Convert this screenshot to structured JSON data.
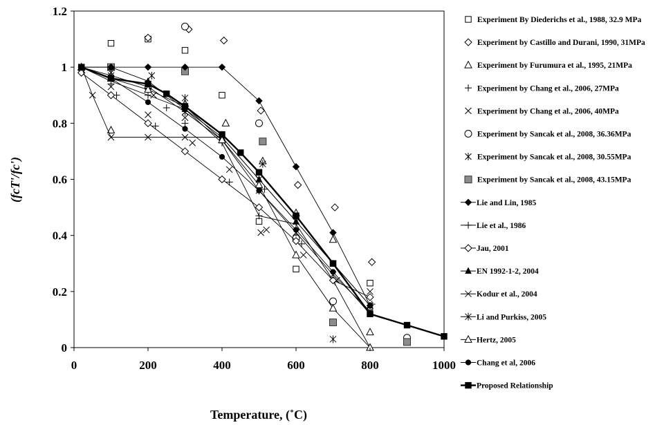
{
  "chart_data": {
    "type": "scatter",
    "title": "",
    "xlabel": "Temperature, (˚C)",
    "ylabel": "(fcT'/fc')",
    "xlim": [
      0,
      1000
    ],
    "ylim": [
      0,
      1.2
    ],
    "xticks": [
      0,
      200,
      400,
      600,
      800,
      1000
    ],
    "yticks": [
      0,
      0.2,
      0.4,
      0.6,
      0.8,
      1,
      1.2
    ],
    "ytick_labels": [
      "0",
      "0.2",
      "0.4",
      "0.6",
      "0.8",
      "1",
      "1.2"
    ],
    "grid": false,
    "legend_position": "right",
    "series": [
      {
        "name": "Experiment By Diederichs et al., 1988, 32.9 MPa",
        "marker": "square-open",
        "line": false,
        "x": [
          20,
          100,
          200,
          300,
          400,
          500,
          600,
          700,
          800,
          900
        ],
        "y": [
          1.0,
          1.085,
          1.1,
          1.06,
          0.9,
          0.45,
          0.28,
          0.3,
          0.23,
          0.02
        ]
      },
      {
        "name": "Experiment by Castillo and Durani, 1990, 31MPa",
        "marker": "diamond-open",
        "line": false,
        "x": [
          20,
          200,
          310,
          405,
          505,
          605,
          705,
          805
        ],
        "y": [
          0.99,
          1.105,
          1.135,
          1.095,
          0.845,
          0.58,
          0.5,
          0.305
        ]
      },
      {
        "name": "Experiment by Furumura et al., 1995, 21MPa",
        "marker": "triangle-open",
        "line": false,
        "x": [
          100,
          200,
          300,
          410,
          510,
          600,
          700,
          800
        ],
        "y": [
          0.775,
          0.935,
          0.87,
          0.8,
          0.665,
          0.48,
          0.385,
          0.055
        ]
      },
      {
        "name": "Experiment by Chang et al., 2006, 27MPa",
        "marker": "plus",
        "line": false,
        "x": [
          100,
          115,
          220,
          250,
          300,
          420,
          515,
          615,
          705,
          805
        ],
        "y": [
          0.94,
          0.9,
          0.79,
          0.855,
          0.8,
          0.59,
          0.565,
          0.37,
          0.235,
          0.155
        ]
      },
      {
        "name": "Experiment by Chang et al., 2006, 40MPa",
        "marker": "x",
        "line": false,
        "x": [
          100,
          200,
          215,
          300,
          320,
          420,
          505,
          520,
          620,
          710,
          800
        ],
        "y": [
          0.93,
          0.83,
          0.9,
          0.82,
          0.73,
          0.635,
          0.41,
          0.42,
          0.33,
          0.24,
          0.2
        ]
      },
      {
        "name": "Experiment by Sancak et al., 2008, 36.36MPa",
        "marker": "circle-open",
        "line": false,
        "x": [
          300,
          500,
          600,
          700,
          900
        ],
        "y": [
          1.145,
          0.8,
          0.39,
          0.165,
          0.035
        ]
      },
      {
        "name": "Experiment by Sancak et al., 2008, 30.55MPa",
        "marker": "asterisk",
        "line": false,
        "x": [
          100,
          210,
          300,
          510,
          700,
          800
        ],
        "y": [
          0.98,
          0.97,
          0.89,
          0.655,
          0.03,
          0.125
        ]
      },
      {
        "name": "Experiment by Sancak et al., 2008, 43.15MPa",
        "marker": "square-gray",
        "line": false,
        "x": [
          100,
          300,
          510,
          700,
          900
        ],
        "y": [
          1.0,
          0.985,
          0.735,
          0.09,
          0.02
        ]
      },
      {
        "name": "Lie and Lin, 1985",
        "marker": "diamond-filled",
        "line": true,
        "x": [
          20,
          100,
          200,
          300,
          400,
          500,
          600,
          700,
          800
        ],
        "y": [
          1.0,
          1.0,
          1.0,
          1.0,
          1.0,
          0.88,
          0.645,
          0.41,
          0.15
        ]
      },
      {
        "name": "Lie et al., 1986",
        "marker": "plus",
        "line": true,
        "x": [
          20,
          100,
          200,
          300,
          400,
          500,
          600,
          700,
          800
        ],
        "y": [
          1.0,
          0.95,
          0.9,
          0.85,
          0.73,
          0.47,
          0.44,
          0.24,
          0.0
        ]
      },
      {
        "name": "Jau, 2001",
        "marker": "diamond-open",
        "line": true,
        "x": [
          20,
          100,
          200,
          300,
          400,
          500,
          600,
          700,
          800
        ],
        "y": [
          0.98,
          0.9,
          0.8,
          0.7,
          0.6,
          0.5,
          0.38,
          0.24,
          0.18
        ]
      },
      {
        "name": "EN 1992-1-2, 2004",
        "marker": "triangle-filled",
        "line": true,
        "x": [
          20,
          100,
          200,
          300,
          400,
          500,
          600,
          700,
          800
        ],
        "y": [
          1.0,
          1.0,
          0.95,
          0.85,
          0.75,
          0.6,
          0.45,
          0.3,
          0.15
        ]
      },
      {
        "name": "Kodur et al., 2004",
        "marker": "x",
        "line": true,
        "x": [
          20,
          50,
          100,
          200,
          300,
          400,
          500,
          600,
          700,
          800
        ],
        "y": [
          1.0,
          0.9,
          0.75,
          0.75,
          0.75,
          0.75,
          0.6,
          0.45,
          0.3,
          0.15
        ]
      },
      {
        "name": "Li and Purkiss, 2005",
        "marker": "asterisk",
        "line": true,
        "x": [
          20,
          100,
          200,
          300,
          400,
          500,
          600,
          700,
          800
        ],
        "y": [
          1.0,
          0.97,
          0.93,
          0.84,
          0.74,
          0.56,
          0.41,
          0.26,
          0.13
        ]
      },
      {
        "name": "Hertz, 2005",
        "marker": "triangle-open",
        "line": true,
        "x": [
          20,
          100,
          200,
          300,
          400,
          500,
          600,
          700,
          800
        ],
        "y": [
          1.0,
          0.96,
          0.92,
          0.86,
          0.74,
          0.58,
          0.33,
          0.14,
          0.0
        ]
      },
      {
        "name": "Chang et al, 2006",
        "marker": "circle-filled",
        "line": true,
        "x": [
          20,
          100,
          200,
          300,
          400,
          500,
          600,
          700,
          800
        ],
        "y": [
          1.0,
          0.96,
          0.875,
          0.78,
          0.68,
          0.56,
          0.42,
          0.27,
          0.12
        ]
      },
      {
        "name": "Proposed Relationship",
        "marker": "square-filled",
        "line": true,
        "bold": true,
        "x": [
          20,
          100,
          200,
          250,
          300,
          400,
          450,
          500,
          600,
          700,
          800,
          900,
          1000
        ],
        "y": [
          1.0,
          0.96,
          0.94,
          0.905,
          0.86,
          0.76,
          0.695,
          0.625,
          0.47,
          0.3,
          0.12,
          0.08,
          0.04
        ]
      }
    ]
  }
}
